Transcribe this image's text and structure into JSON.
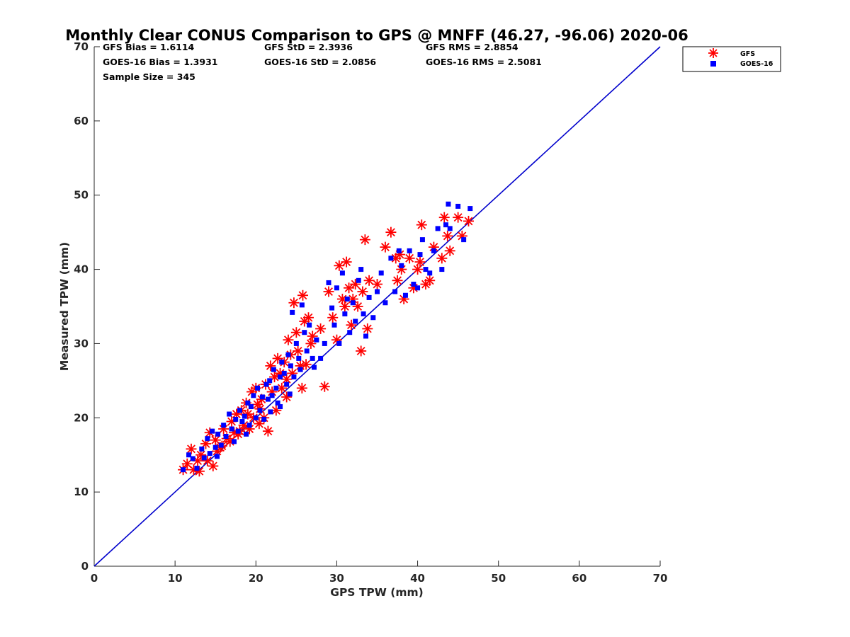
{
  "chart_data": {
    "type": "scatter",
    "title": "Monthly Clear CONUS Comparison to GPS @ MNFF (46.27, -96.06) 2020-06",
    "xlabel": "GPS TPW (mm)",
    "ylabel": "Measured TPW (mm)",
    "xlim": [
      0,
      70
    ],
    "ylim": [
      0,
      70
    ],
    "xticks": [
      "0",
      "10",
      "20",
      "30",
      "40",
      "50",
      "60",
      "70"
    ],
    "yticks": [
      "0",
      "10",
      "20",
      "30",
      "40",
      "50",
      "60",
      "70"
    ],
    "grid": false,
    "legend_position": "top-right outside",
    "stats": {
      "gfs_bias": "GFS Bias = 1.6114",
      "goes_bias": "GOES-16 Bias = 1.3931",
      "gfs_std": "GFS StD = 2.3936",
      "goes_std": "GOES-16 StD = 2.0856",
      "gfs_rms": "GFS RMS = 2.8854",
      "goes_rms": "GOES-16 RMS = 2.5081",
      "sample_size": "Sample Size = 345"
    },
    "reference_line": {
      "from": [
        0,
        0
      ],
      "to": [
        70,
        70
      ],
      "color": "#0000cc"
    },
    "series": [
      {
        "name": "GFS",
        "marker": "asterisk",
        "color": "#ff0000",
        "points": [
          [
            11,
            13
          ],
          [
            11.5,
            13.8
          ],
          [
            12,
            15.8
          ],
          [
            12.3,
            13
          ],
          [
            12.8,
            14.2
          ],
          [
            13.2,
            15
          ],
          [
            13.8,
            16.5
          ],
          [
            14,
            14.2
          ],
          [
            14.3,
            18
          ],
          [
            14.7,
            13.5
          ],
          [
            15,
            17
          ],
          [
            15.2,
            15.5
          ],
          [
            15.6,
            16
          ],
          [
            16,
            18.5
          ],
          [
            16.4,
            17.2
          ],
          [
            16.8,
            16.8
          ],
          [
            17,
            19.5
          ],
          [
            17.3,
            18
          ],
          [
            17.6,
            20.5
          ],
          [
            17.8,
            17.8
          ],
          [
            18.2,
            21
          ],
          [
            18.5,
            19
          ],
          [
            18.8,
            22
          ],
          [
            19,
            20.5
          ],
          [
            19.2,
            18.5
          ],
          [
            19.5,
            23.5
          ],
          [
            19.7,
            20
          ],
          [
            20,
            24
          ],
          [
            20.2,
            21.8
          ],
          [
            20.4,
            19.2
          ],
          [
            20.7,
            22.5
          ],
          [
            21,
            20
          ],
          [
            21.2,
            24.5
          ],
          [
            21.5,
            18.2
          ],
          [
            21.8,
            27
          ],
          [
            22,
            23.5
          ],
          [
            22.3,
            25.5
          ],
          [
            22.5,
            21
          ],
          [
            22.7,
            28
          ],
          [
            23,
            26
          ],
          [
            23.2,
            24
          ],
          [
            23.5,
            27.5
          ],
          [
            23.8,
            22.8
          ],
          [
            24,
            30.5
          ],
          [
            24.3,
            28.5
          ],
          [
            24.5,
            26
          ],
          [
            24.7,
            35.5
          ],
          [
            25,
            31.5
          ],
          [
            25.2,
            29
          ],
          [
            25.5,
            27
          ],
          [
            25.7,
            24
          ],
          [
            25.8,
            36.5
          ],
          [
            26,
            33
          ],
          [
            26.5,
            33.5
          ],
          [
            26.8,
            30
          ],
          [
            27,
            31
          ],
          [
            28,
            32
          ],
          [
            28.5,
            24.2
          ],
          [
            29,
            37
          ],
          [
            29.5,
            33.5
          ],
          [
            30,
            30.5
          ],
          [
            30.3,
            40.5
          ],
          [
            30.7,
            36
          ],
          [
            31,
            35
          ],
          [
            31.2,
            41
          ],
          [
            31.5,
            37.5
          ],
          [
            31.8,
            32.5
          ],
          [
            32,
            36
          ],
          [
            32.3,
            38
          ],
          [
            32.6,
            35
          ],
          [
            33,
            29
          ],
          [
            33.2,
            37
          ],
          [
            33.5,
            44
          ],
          [
            33.8,
            32
          ],
          [
            34,
            38.5
          ],
          [
            35,
            38
          ],
          [
            36,
            43
          ],
          [
            36.7,
            45
          ],
          [
            37.3,
            41.5
          ],
          [
            37.5,
            38.5
          ],
          [
            37.8,
            42
          ],
          [
            38,
            40
          ],
          [
            38.3,
            36
          ],
          [
            39,
            41.5
          ],
          [
            39.5,
            37.5
          ],
          [
            40,
            40
          ],
          [
            40.3,
            41
          ],
          [
            40.5,
            46
          ],
          [
            41,
            38
          ],
          [
            41.5,
            38.5
          ],
          [
            42,
            43
          ],
          [
            43,
            41.5
          ],
          [
            43.3,
            47
          ],
          [
            43.7,
            44.5
          ],
          [
            44,
            42.5
          ],
          [
            45,
            47
          ],
          [
            45.5,
            44.5
          ],
          [
            46.3,
            46.5
          ],
          [
            13,
            12.8
          ],
          [
            15.8,
            16.2
          ],
          [
            18,
            18.2
          ],
          [
            20.5,
            21.2
          ],
          [
            23.8,
            25.2
          ],
          [
            26.2,
            27.2
          ]
        ]
      },
      {
        "name": "GOES-16",
        "marker": "square",
        "color": "#0000ff",
        "points": [
          [
            11,
            13
          ],
          [
            11.7,
            15
          ],
          [
            12.2,
            14.5
          ],
          [
            12.7,
            13.2
          ],
          [
            13.3,
            15.8
          ],
          [
            13.6,
            14.6
          ],
          [
            14,
            17.2
          ],
          [
            14.3,
            15.2
          ],
          [
            14.6,
            18.2
          ],
          [
            15,
            16
          ],
          [
            15.3,
            17.8
          ],
          [
            15.7,
            16.3
          ],
          [
            16,
            19
          ],
          [
            16.3,
            17.5
          ],
          [
            16.7,
            20.5
          ],
          [
            17,
            18.5
          ],
          [
            17.3,
            16.8
          ],
          [
            17.5,
            19.8
          ],
          [
            17.8,
            18.2
          ],
          [
            18,
            21
          ],
          [
            18.3,
            19.5
          ],
          [
            18.6,
            20.2
          ],
          [
            19,
            22
          ],
          [
            19.2,
            19
          ],
          [
            19.4,
            21.5
          ],
          [
            19.7,
            23
          ],
          [
            20,
            20
          ],
          [
            20.2,
            24
          ],
          [
            20.5,
            21
          ],
          [
            20.8,
            22.8
          ],
          [
            21,
            19.8
          ],
          [
            21.3,
            24.5
          ],
          [
            21.5,
            22.5
          ],
          [
            21.7,
            25
          ],
          [
            22,
            23
          ],
          [
            22.2,
            26.5
          ],
          [
            22.5,
            24
          ],
          [
            22.7,
            22
          ],
          [
            23,
            25.5
          ],
          [
            23.2,
            27.5
          ],
          [
            23.5,
            26
          ],
          [
            23.8,
            24.5
          ],
          [
            24,
            28.5
          ],
          [
            24.3,
            27
          ],
          [
            24.5,
            34.2
          ],
          [
            24.7,
            25.5
          ],
          [
            25,
            30
          ],
          [
            25.3,
            28
          ],
          [
            25.5,
            26.5
          ],
          [
            25.7,
            35.2
          ],
          [
            26,
            31.5
          ],
          [
            26.3,
            29
          ],
          [
            26.6,
            32.5
          ],
          [
            27,
            28
          ],
          [
            27.5,
            30.5
          ],
          [
            28,
            28
          ],
          [
            28.5,
            30
          ],
          [
            29,
            38.2
          ],
          [
            29.4,
            34.8
          ],
          [
            29.7,
            32.5
          ],
          [
            30,
            37.5
          ],
          [
            30.3,
            30
          ],
          [
            30.7,
            39.5
          ],
          [
            31,
            34
          ],
          [
            31.3,
            36
          ],
          [
            31.6,
            31.5
          ],
          [
            32,
            35.5
          ],
          [
            32.3,
            33
          ],
          [
            32.7,
            38.5
          ],
          [
            33,
            40
          ],
          [
            33.3,
            34
          ],
          [
            33.6,
            31
          ],
          [
            34,
            36.2
          ],
          [
            34.5,
            33.5
          ],
          [
            35,
            37
          ],
          [
            35.5,
            39.5
          ],
          [
            36,
            35.5
          ],
          [
            36.7,
            41.5
          ],
          [
            37.2,
            37
          ],
          [
            37.7,
            42.5
          ],
          [
            38,
            40.5
          ],
          [
            38.5,
            36.5
          ],
          [
            39,
            42.5
          ],
          [
            39.5,
            38
          ],
          [
            40,
            37.5
          ],
          [
            40.3,
            42
          ],
          [
            40.6,
            44
          ],
          [
            41,
            40
          ],
          [
            41.5,
            39.5
          ],
          [
            42,
            42.5
          ],
          [
            42.5,
            45.5
          ],
          [
            43,
            40
          ],
          [
            43.5,
            46
          ],
          [
            43.8,
            48.8
          ],
          [
            44,
            45.5
          ],
          [
            45,
            48.5
          ],
          [
            45.7,
            44
          ],
          [
            46.5,
            48.2
          ],
          [
            15.2,
            14.8
          ],
          [
            18.8,
            17.8
          ],
          [
            21.8,
            20.8
          ],
          [
            24.2,
            23.2
          ],
          [
            27.2,
            26.8
          ],
          [
            23,
            21.5
          ]
        ]
      }
    ]
  }
}
